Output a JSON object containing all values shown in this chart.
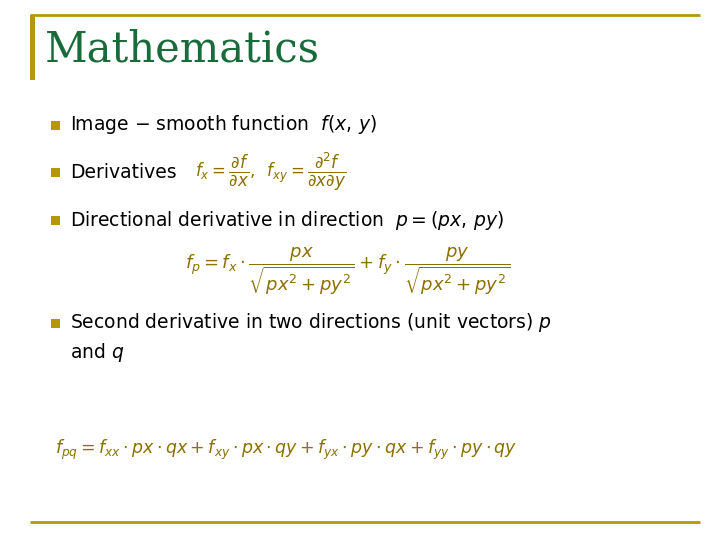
{
  "title": "Mathematics",
  "title_color": "#1a6b3c",
  "title_fontsize": 30,
  "background_color": "#ffffff",
  "border_color": "#B8960C",
  "bullet_color": "#B8960C",
  "text_color": "#000000",
  "formula_color": "#8B7000",
  "title_bar_color": "#B8960C"
}
